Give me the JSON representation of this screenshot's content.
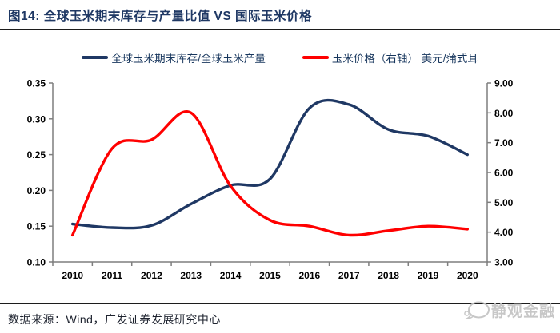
{
  "header": {
    "title": "图14:  全球玉米期末库存与产量比值 VS 国际玉米价格"
  },
  "legend": [
    {
      "label": "全球玉米期末库存/全球玉米产量",
      "color": "#1f3864"
    },
    {
      "label": "玉米价格（右轴） 美元/蒲式耳",
      "color": "#ff0000"
    }
  ],
  "chart_data": {
    "type": "line",
    "smooth": true,
    "grid": false,
    "legend_position": "top",
    "categories": [
      "2010",
      "2011",
      "2012",
      "2013",
      "2014",
      "2015",
      "2016",
      "2017",
      "2018",
      "2019",
      "2020"
    ],
    "series": [
      {
        "name": "全球玉米期末库存/全球玉米产量",
        "axis": "left",
        "color": "#1f3864",
        "values": [
          0.153,
          0.148,
          0.151,
          0.181,
          0.207,
          0.216,
          0.315,
          0.32,
          0.285,
          0.276,
          0.25
        ]
      },
      {
        "name": "玉米价格（右轴） 美元/蒲式耳",
        "axis": "right",
        "color": "#ff0000",
        "values": [
          3.9,
          6.8,
          7.1,
          8.0,
          5.55,
          4.4,
          4.2,
          3.9,
          4.05,
          4.2,
          4.1
        ]
      }
    ],
    "left_axis": {
      "min": 0.1,
      "max": 0.35,
      "ticks": [
        "0.35",
        "0.30",
        "0.25",
        "0.20",
        "0.15",
        "0.10"
      ]
    },
    "right_axis": {
      "min": 3.0,
      "max": 9.0,
      "ticks": [
        "9.00",
        "8.00",
        "7.00",
        "6.00",
        "5.00",
        "4.00",
        "3.00"
      ]
    },
    "axis_color": "#7f7f7f"
  },
  "footer": {
    "source": "数据来源：Wind，广发证券发展研究中心"
  },
  "watermark": {
    "text": "静观金融",
    "icon": "chat-bubble-icon",
    "color": "#c2c2c2"
  }
}
